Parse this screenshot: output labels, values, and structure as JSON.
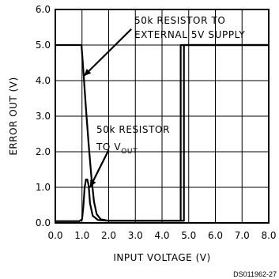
{
  "chart_data": {
    "type": "line",
    "xlabel": "INPUT VOLTAGE (V)",
    "ylabel": "ERROR OUT (V)",
    "xlim": [
      0,
      8
    ],
    "ylim": [
      0,
      6
    ],
    "x_ticks": [
      "0.0",
      "1.0",
      "2.0",
      "3.0",
      "4.0",
      "5.0",
      "6.0",
      "7.0",
      "8.0"
    ],
    "y_ticks": [
      "0.0",
      "1.0",
      "2.0",
      "3.0",
      "4.0",
      "5.0",
      "6.0"
    ],
    "grid": true,
    "series": [
      {
        "name_lines": [
          "50k RESISTOR TO",
          "EXTERNAL 5V SUPPLY"
        ],
        "points": [
          [
            0,
            5.0
          ],
          [
            0.98,
            5.0
          ],
          [
            1.05,
            4.3
          ],
          [
            1.15,
            3.2
          ],
          [
            1.25,
            2.2
          ],
          [
            1.35,
            1.3
          ],
          [
            1.45,
            0.6
          ],
          [
            1.55,
            0.25
          ],
          [
            1.7,
            0.1
          ],
          [
            2.0,
            0.06
          ],
          [
            4.7,
            0.06
          ],
          [
            4.7,
            5.0
          ],
          [
            8.0,
            5.0
          ]
        ]
      },
      {
        "name_lines": [
          "50k RESISTOR",
          "TO V",
          "OUT"
        ],
        "points": [
          [
            0,
            0.05
          ],
          [
            0.9,
            0.05
          ],
          [
            1.0,
            0.1
          ],
          [
            1.05,
            0.45
          ],
          [
            1.1,
            1.0
          ],
          [
            1.15,
            1.22
          ],
          [
            1.2,
            1.22
          ],
          [
            1.25,
            1.05
          ],
          [
            1.3,
            0.55
          ],
          [
            1.4,
            0.2
          ],
          [
            1.6,
            0.08
          ],
          [
            2.0,
            0.06
          ],
          [
            4.82,
            0.06
          ],
          [
            4.82,
            5.0
          ],
          [
            8.0,
            5.0
          ]
        ]
      }
    ],
    "annotations": {
      "line1": "50k RESISTOR TO",
      "line2": "EXTERNAL 5V SUPPLY",
      "line3": "50k RESISTOR",
      "line4_main": "TO V",
      "line4_sub": "OUT"
    },
    "footer_code": "DS011962-27"
  }
}
